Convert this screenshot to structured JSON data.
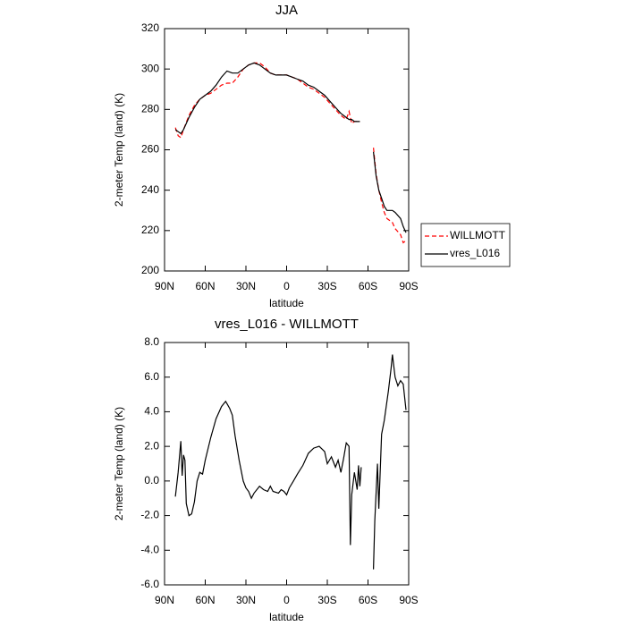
{
  "chart_data": [
    {
      "type": "line",
      "title": "JJA",
      "xlabel": "latitude",
      "ylabel": "2-meter Temp (land) (K)",
      "x": [
        82,
        80,
        78,
        76,
        72,
        68,
        64,
        60,
        56,
        52,
        48,
        44,
        40,
        36,
        32,
        28,
        24,
        20,
        16,
        12,
        8,
        4,
        0,
        -4,
        -8,
        -12,
        -16,
        -20,
        -24,
        -28,
        -32,
        -36,
        -40,
        -44,
        -46,
        -48,
        -50,
        -54,
        -58,
        -64,
        -66,
        -68,
        -70,
        -72,
        -74,
        -78,
        -80,
        -84,
        -86,
        -88
      ],
      "series": [
        {
          "name": "WILLMOTT",
          "color": "#ff0000",
          "dashed": true,
          "values": [
            271,
            267,
            266,
            270,
            277,
            282,
            285,
            287,
            288,
            290,
            292,
            293,
            293,
            296,
            300,
            302,
            303,
            303,
            301,
            298,
            297,
            297,
            297,
            296,
            295,
            293,
            291,
            290,
            288,
            286,
            283,
            280,
            277,
            275,
            279,
            273,
            274,
            274,
            null,
            261,
            248,
            240,
            234,
            229,
            226,
            224,
            221,
            218,
            214,
            215
          ]
        },
        {
          "name": "vres_L016",
          "color": "#000000",
          "dashed": false,
          "values": [
            270,
            269,
            268,
            270,
            276,
            281,
            285,
            287,
            289,
            292,
            296,
            299,
            298,
            298,
            300,
            302,
            303,
            302,
            300,
            298,
            297,
            297,
            297,
            296,
            295,
            294,
            292,
            291,
            289,
            287,
            284,
            281,
            278,
            276,
            275,
            275,
            274,
            274,
            null,
            259,
            247,
            240,
            236,
            232,
            230,
            230,
            229,
            226,
            222,
            219
          ]
        }
      ],
      "xlim": [
        90,
        -90
      ],
      "xticks": [
        {
          "value": 90,
          "label": "90N"
        },
        {
          "value": 60,
          "label": "60N"
        },
        {
          "value": 30,
          "label": "30N"
        },
        0,
        {
          "value": -30,
          "label": "30S"
        },
        {
          "value": -60,
          "label": "60S"
        },
        {
          "value": -90,
          "label": "90S"
        }
      ],
      "ylim": [
        200,
        320
      ],
      "yticks": [
        200,
        220,
        240,
        260,
        280,
        300,
        320
      ],
      "legend": "right"
    },
    {
      "type": "line",
      "title": "vres_L016 - WILLMOTT",
      "xlabel": "latitude",
      "ylabel": "2-meter Temp (land) (K)",
      "x": [
        82,
        80,
        78,
        77,
        76,
        75,
        74,
        72,
        70,
        68,
        66,
        64,
        62,
        60,
        56,
        52,
        48,
        45,
        42,
        40,
        38,
        35,
        32,
        30,
        28,
        26,
        24,
        20,
        17,
        14,
        12,
        10,
        6,
        4,
        2,
        0,
        -2,
        -5,
        -8,
        -12,
        -16,
        -20,
        -24,
        -28,
        -30,
        -33,
        -36,
        -38,
        -40,
        -42,
        -44,
        -46,
        -47,
        -48,
        -50,
        -52,
        -53,
        -54,
        -55,
        -60,
        -64,
        -65,
        -67,
        -68,
        -70,
        -72,
        -75,
        -77,
        -78,
        -80,
        -82,
        -84,
        -86,
        -88
      ],
      "values": [
        -0.9,
        0.5,
        2.3,
        0.3,
        1.5,
        1.2,
        -1.3,
        -2.0,
        -1.9,
        -1.2,
        0.0,
        0.5,
        0.4,
        1.2,
        2.5,
        3.6,
        4.3,
        4.6,
        4.2,
        3.8,
        2.6,
        1.2,
        0.0,
        -0.4,
        -0.6,
        -1.0,
        -0.7,
        -0.3,
        -0.5,
        -0.6,
        -0.3,
        -0.6,
        -0.7,
        -0.5,
        -0.6,
        -0.8,
        -0.4,
        0.0,
        0.4,
        0.9,
        1.6,
        1.9,
        2.0,
        1.7,
        1.0,
        1.4,
        0.8,
        1.2,
        0.5,
        1.3,
        2.2,
        2.0,
        -3.7,
        -0.8,
        0.5,
        -0.5,
        0.9,
        -0.3,
        0.8,
        null,
        -5.1,
        -2.3,
        1.0,
        -1.6,
        2.7,
        3.5,
        5.2,
        6.5,
        7.3,
        6.0,
        5.5,
        5.8,
        5.6,
        4.1
      ],
      "color": "#000000",
      "xlim": [
        90,
        -90
      ],
      "xticks": [
        {
          "value": 90,
          "label": "90N"
        },
        {
          "value": 60,
          "label": "60N"
        },
        {
          "value": 30,
          "label": "30N"
        },
        0,
        {
          "value": -30,
          "label": "30S"
        },
        {
          "value": -60,
          "label": "60S"
        },
        {
          "value": -90,
          "label": "90S"
        }
      ],
      "ylim": [
        -6,
        8
      ],
      "yticks": [
        {
          "value": -6,
          "label": "-6.0"
        },
        {
          "value": -4,
          "label": "-4.0"
        },
        {
          "value": -2,
          "label": "-2.0"
        },
        {
          "value": 0,
          "label": "0.0"
        },
        {
          "value": 2,
          "label": "2.0"
        },
        {
          "value": 4,
          "label": "4.0"
        },
        {
          "value": 6,
          "label": "6.0"
        },
        {
          "value": 8,
          "label": "8.0"
        }
      ]
    }
  ]
}
